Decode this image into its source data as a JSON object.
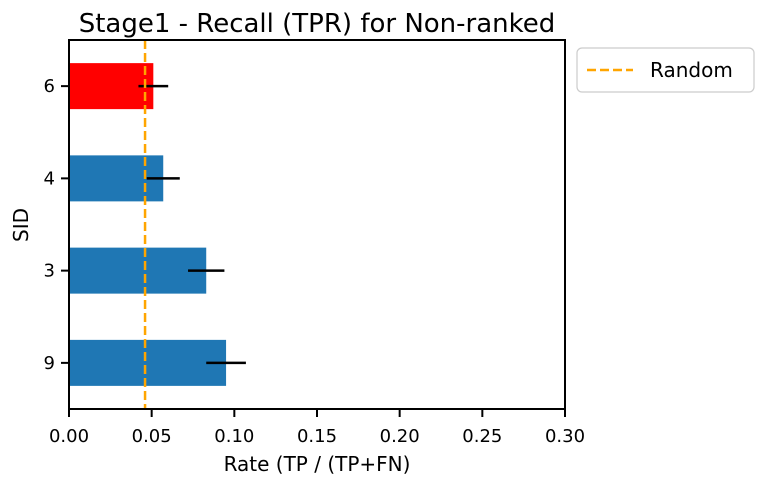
{
  "chart_data": {
    "type": "bar",
    "orientation": "horizontal",
    "title": "Stage1 - Recall (TPR) for Non-ranked",
    "xlabel": "Rate (TP / (TP+FN)",
    "ylabel": "SID",
    "xlim": [
      0,
      0.3
    ],
    "xticks": [
      "0.00",
      "0.05",
      "0.10",
      "0.15",
      "0.20",
      "0.25",
      "0.30"
    ],
    "categories": [
      "6",
      "4",
      "3",
      "9"
    ],
    "values": [
      0.051,
      0.057,
      0.083,
      0.095
    ],
    "errors": [
      0.009,
      0.01,
      0.011,
      0.012
    ],
    "bar_colors": [
      "#ff0000",
      "#1f77b4",
      "#1f77b4",
      "#1f77b4"
    ],
    "error_color": "#000000",
    "reference_line": {
      "name": "Random",
      "x": 0.046,
      "color": "#ffa500",
      "style": "dashed"
    },
    "legend": {
      "entries": [
        "Random"
      ],
      "placement": "outside-top-right"
    },
    "grid": false
  }
}
